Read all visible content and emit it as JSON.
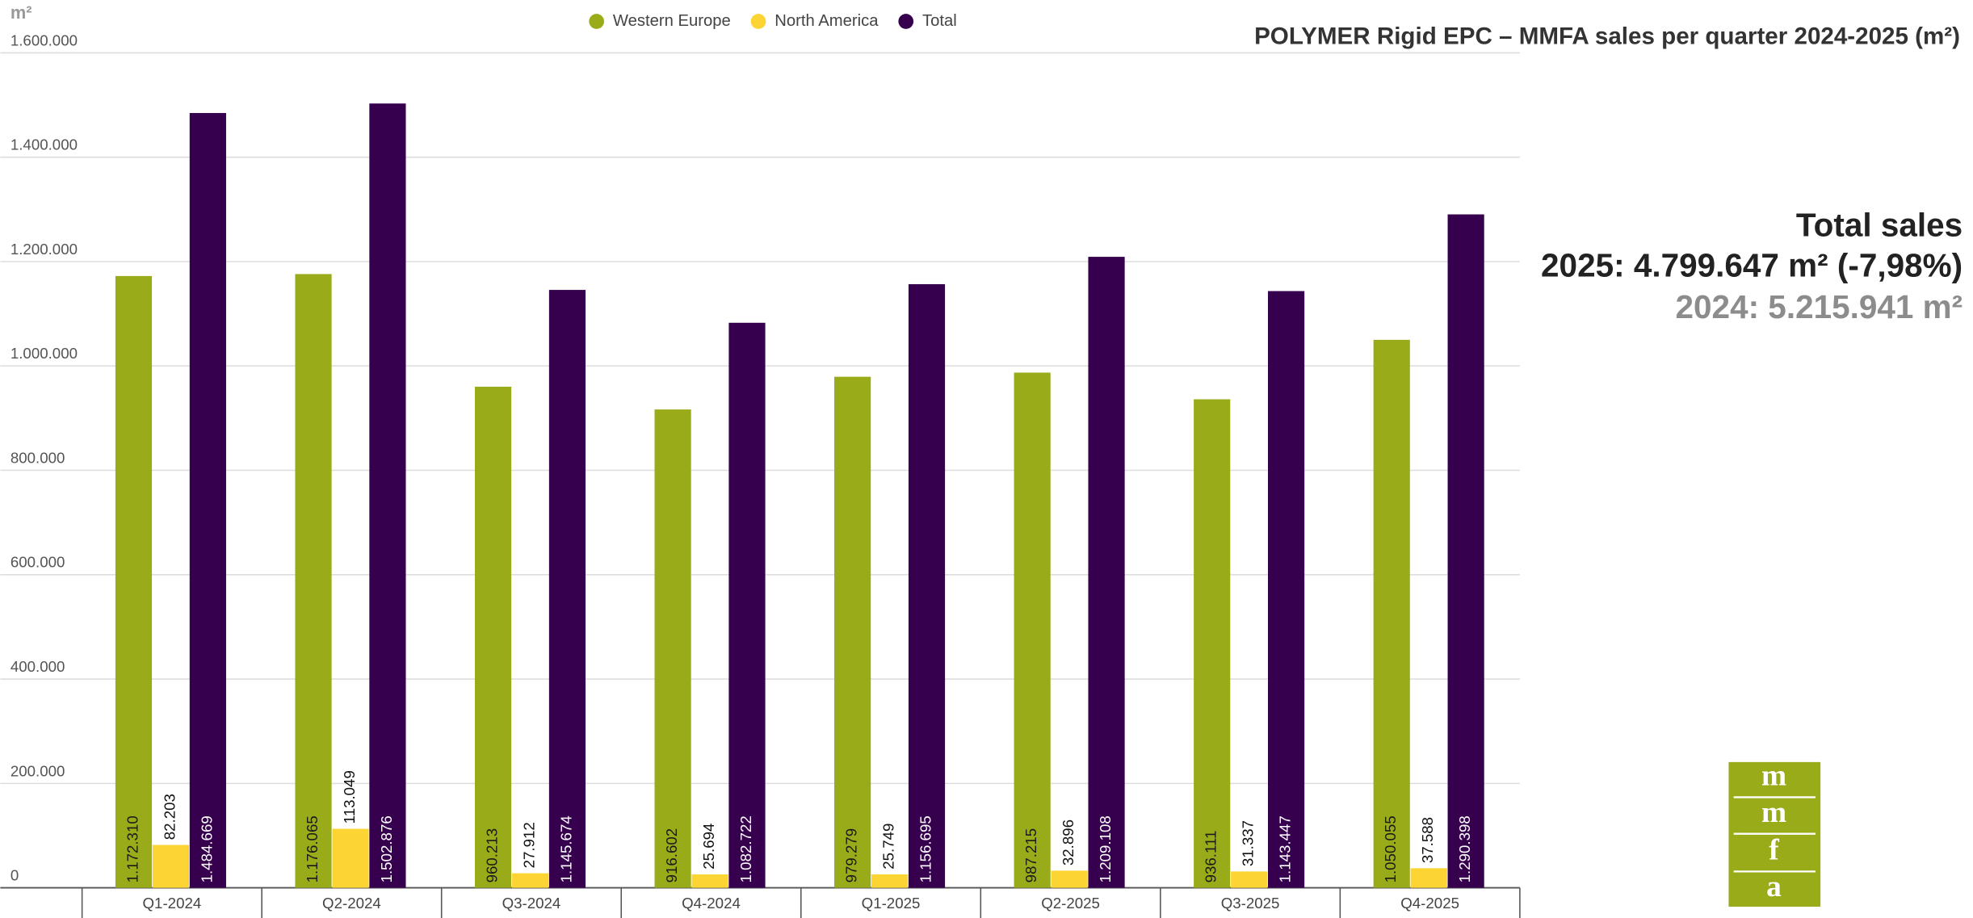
{
  "chart_data": {
    "type": "bar",
    "title": "POLYMER Rigid EPC – MMFA sales per quarter 2024-2025 (m²)",
    "y_unit": "m²",
    "categories": [
      "Q1-2024",
      "Q2-2024",
      "Q3-2024",
      "Q4-2024",
      "Q1-2025",
      "Q2-2025",
      "Q3-2025",
      "Q4-2025"
    ],
    "series": [
      {
        "name": "Western Europe",
        "color": "#9aab1a",
        "values": [
          1172310,
          1176065,
          960213,
          916602,
          979279,
          987215,
          936111,
          1050055
        ],
        "value_labels": [
          "1.172.310",
          "1.176.065",
          "960.213",
          "916.602",
          "979.279",
          "987.215",
          "936.111",
          "1.050.055"
        ]
      },
      {
        "name": "North America",
        "color": "#fcd535",
        "values": [
          82203,
          113049,
          27912,
          25694,
          25749,
          32896,
          31337,
          37588
        ],
        "value_labels": [
          "82.203",
          "113.049",
          "27.912",
          "25.694",
          "25.749",
          "32.896",
          "31.337",
          "37.588"
        ]
      },
      {
        "name": "Total",
        "color": "#36004f",
        "values": [
          1484669,
          1502876,
          1145674,
          1082722,
          1156695,
          1209108,
          1143447,
          1290398
        ],
        "value_labels": [
          "1.484.669",
          "1.502.876",
          "1.145.674",
          "1.082.722",
          "1.156.695",
          "1.209.108",
          "1.143.447",
          "1.290.398"
        ]
      }
    ],
    "ylim": [
      0,
      1600000
    ],
    "yticks": [
      0,
      {
        "value": 200000,
        "label": "200.000"
      },
      {
        "value": 400000,
        "label": "400.000"
      },
      {
        "value": 600000,
        "label": "600.000"
      },
      {
        "value": 800000,
        "label": "800.000"
      },
      {
        "value": 1000000,
        "label": "1.000.000"
      },
      {
        "value": 1200000,
        "label": "1.200.000"
      },
      {
        "value": 1400000,
        "label": "1.400.000"
      },
      {
        "value": 1600000,
        "label": "1.600.000"
      }
    ],
    "grid": true,
    "legend": "top",
    "annotations": [
      "Total sales",
      "2025: 4.799.647 m² (-7,98%)",
      "2024: 5.215.941 m²"
    ]
  },
  "logo": [
    "m",
    "m",
    "f",
    "a"
  ]
}
